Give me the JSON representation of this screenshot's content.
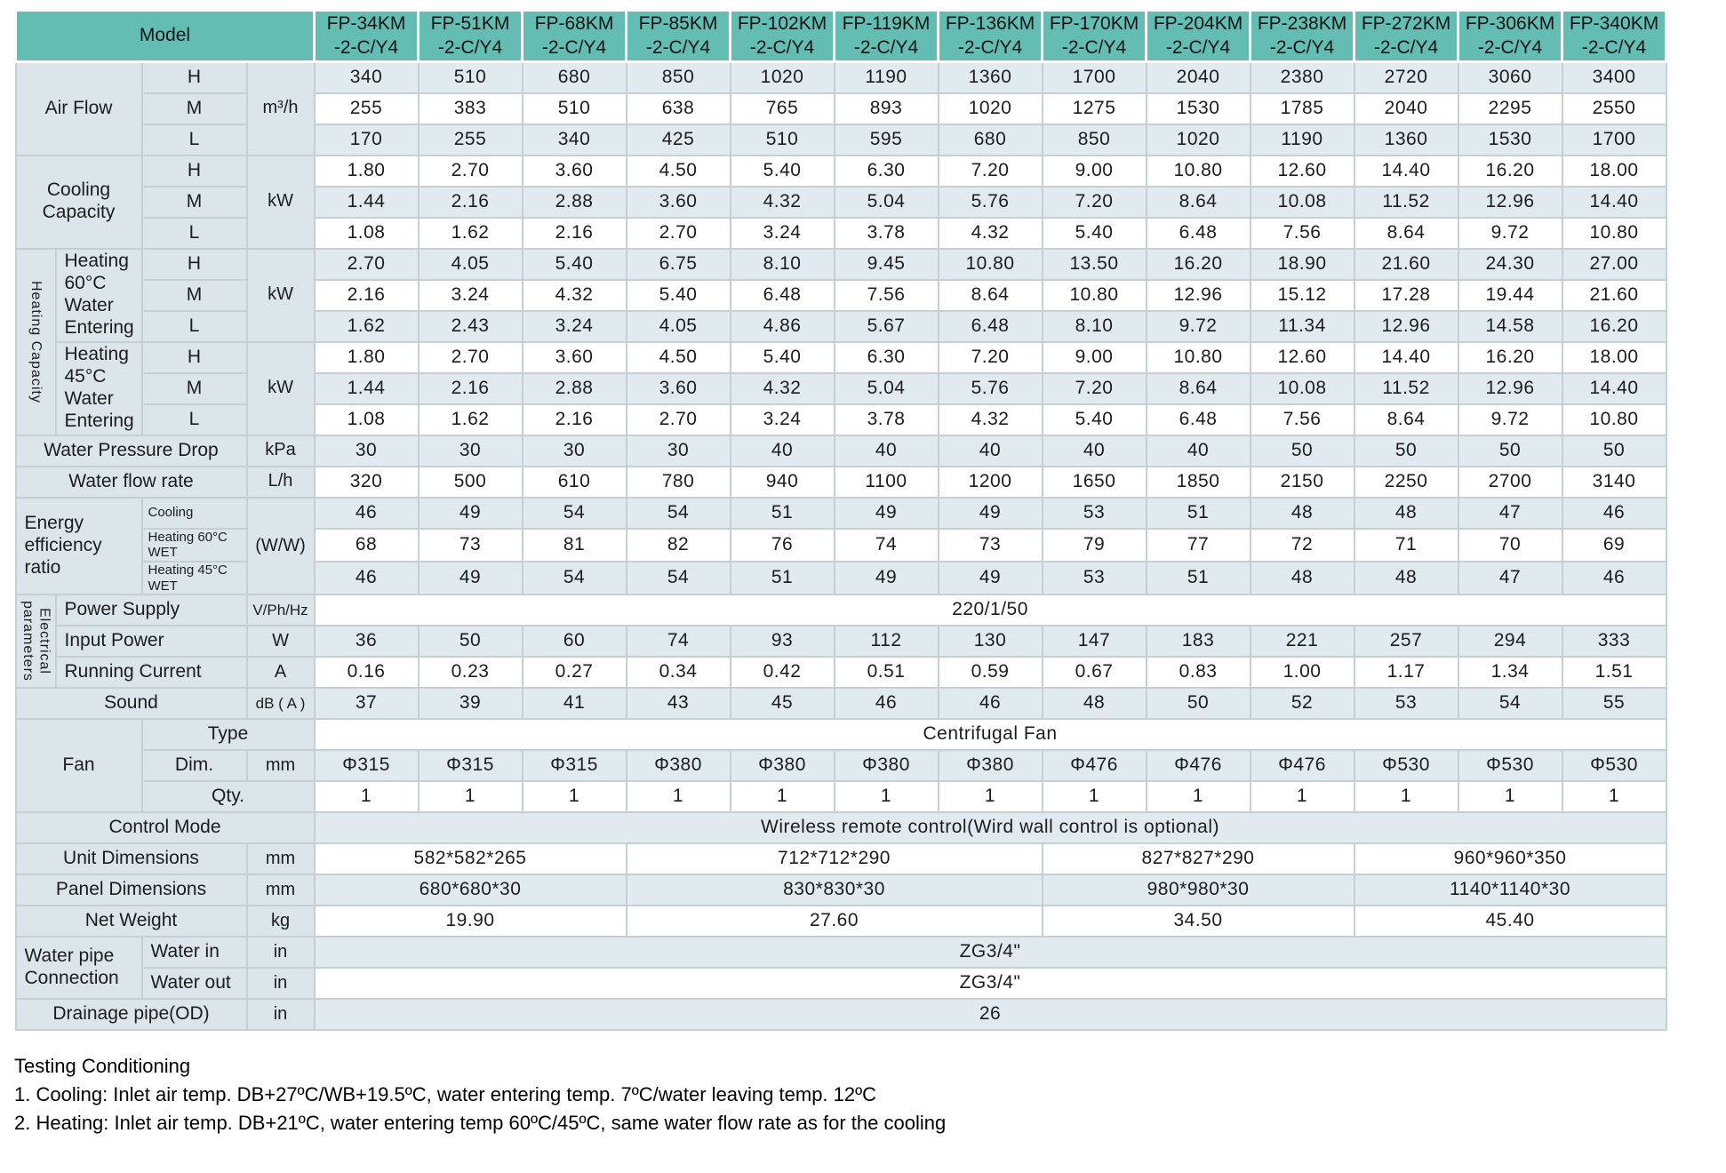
{
  "colors": {
    "header_teal": "#63bdb3",
    "label_bg": "#dbe5ea",
    "stripe_bg": "#e1eaef",
    "border": "#c6d0d4"
  },
  "table": {
    "model_header": "Model",
    "models": [
      "FP-34KM\n-2-C/Y4",
      "FP-51KM\n-2-C/Y4",
      "FP-68KM\n-2-C/Y4",
      "FP-85KM\n-2-C/Y4",
      "FP-102KM\n-2-C/Y4",
      "FP-119KM\n-2-C/Y4",
      "FP-136KM\n-2-C/Y4",
      "FP-170KM\n-2-C/Y4",
      "FP-204KM\n-2-C/Y4",
      "FP-238KM\n-2-C/Y4",
      "FP-272KM\n-2-C/Y4",
      "FP-306KM\n-2-C/Y4",
      "FP-340KM\n-2-C/Y4"
    ],
    "rows": [
      {
        "shade": "light",
        "cells": [
          {
            "t": "Air Flow",
            "cs": 2,
            "rs": 3,
            "c": "lbl",
            "n": "air-flow-label"
          },
          {
            "t": "H",
            "c": "spd",
            "n": "speed-high-label"
          },
          {
            "t": "m³/h",
            "rs": 3,
            "c": "unit",
            "n": "airflow-unit"
          }
        ],
        "values": [
          "340",
          "510",
          "680",
          "850",
          "1020",
          "1190",
          "1360",
          "1700",
          "2040",
          "2380",
          "2720",
          "3060",
          "3400"
        ]
      },
      {
        "shade": "white",
        "cells": [
          {
            "t": "M",
            "c": "spd",
            "n": "speed-mid-label"
          }
        ],
        "values": [
          "255",
          "383",
          "510",
          "638",
          "765",
          "893",
          "1020",
          "1275",
          "1530",
          "1785",
          "2040",
          "2295",
          "2550"
        ]
      },
      {
        "shade": "light",
        "cells": [
          {
            "t": "L",
            "c": "spd",
            "n": "speed-low-label"
          }
        ],
        "values": [
          "170",
          "255",
          "340",
          "425",
          "510",
          "595",
          "680",
          "850",
          "1020",
          "1190",
          "1360",
          "1530",
          "1700"
        ]
      },
      {
        "shade": "white",
        "cells": [
          {
            "t": "Cooling Capacity",
            "cs": 2,
            "rs": 3,
            "c": "lbl",
            "n": "cooling-capacity-label"
          },
          {
            "t": "H",
            "c": "spd",
            "n": "speed-high-label"
          },
          {
            "t": "kW",
            "rs": 3,
            "c": "unit",
            "n": "cooling-unit"
          }
        ],
        "values": [
          "1.80",
          "2.70",
          "3.60",
          "4.50",
          "5.40",
          "6.30",
          "7.20",
          "9.00",
          "10.80",
          "12.60",
          "14.40",
          "16.20",
          "18.00"
        ]
      },
      {
        "shade": "light",
        "cells": [
          {
            "t": "M",
            "c": "spd",
            "n": "speed-mid-label"
          }
        ],
        "values": [
          "1.44",
          "2.16",
          "2.88",
          "3.60",
          "4.32",
          "5.04",
          "5.76",
          "7.20",
          "8.64",
          "10.08",
          "11.52",
          "12.96",
          "14.40"
        ]
      },
      {
        "shade": "white",
        "cells": [
          {
            "t": "L",
            "c": "spd",
            "n": "speed-low-label"
          }
        ],
        "values": [
          "1.08",
          "1.62",
          "2.16",
          "2.70",
          "3.24",
          "3.78",
          "4.32",
          "5.40",
          "6.48",
          "7.56",
          "8.64",
          "9.72",
          "10.80"
        ]
      },
      {
        "shade": "light",
        "cells": [
          {
            "t": "Heating Capacity",
            "rs": 6,
            "c": "vert",
            "n": "heating-capacity-label"
          },
          {
            "t": "Heating\n60°C\nWater\nEntering",
            "rs": 3,
            "c": "lbl left",
            "n": "heating-60-label"
          },
          {
            "t": "H",
            "c": "spd",
            "n": "speed-high-label"
          },
          {
            "t": "kW",
            "rs": 3,
            "c": "unit",
            "n": "heating-60-unit"
          }
        ],
        "values": [
          "2.70",
          "4.05",
          "5.40",
          "6.75",
          "8.10",
          "9.45",
          "10.80",
          "13.50",
          "16.20",
          "18.90",
          "21.60",
          "24.30",
          "27.00"
        ]
      },
      {
        "shade": "white",
        "cells": [
          {
            "t": "M",
            "c": "spd",
            "n": "speed-mid-label"
          }
        ],
        "values": [
          "2.16",
          "3.24",
          "4.32",
          "5.40",
          "6.48",
          "7.56",
          "8.64",
          "10.80",
          "12.96",
          "15.12",
          "17.28",
          "19.44",
          "21.60"
        ]
      },
      {
        "shade": "light",
        "cells": [
          {
            "t": "L",
            "c": "spd",
            "n": "speed-low-label"
          }
        ],
        "values": [
          "1.62",
          "2.43",
          "3.24",
          "4.05",
          "4.86",
          "5.67",
          "6.48",
          "8.10",
          "9.72",
          "11.34",
          "12.96",
          "14.58",
          "16.20"
        ]
      },
      {
        "shade": "white",
        "cells": [
          {
            "t": "Heating\n45°C\nWater\nEntering",
            "rs": 3,
            "c": "lbl left",
            "n": "heating-45-label"
          },
          {
            "t": "H",
            "c": "spd",
            "n": "speed-high-label"
          },
          {
            "t": "kW",
            "rs": 3,
            "c": "unit",
            "n": "heating-45-unit"
          }
        ],
        "values": [
          "1.80",
          "2.70",
          "3.60",
          "4.50",
          "5.40",
          "6.30",
          "7.20",
          "9.00",
          "10.80",
          "12.60",
          "14.40",
          "16.20",
          "18.00"
        ]
      },
      {
        "shade": "light",
        "cells": [
          {
            "t": "M",
            "c": "spd",
            "n": "speed-mid-label"
          }
        ],
        "values": [
          "1.44",
          "2.16",
          "2.88",
          "3.60",
          "4.32",
          "5.04",
          "5.76",
          "7.20",
          "8.64",
          "10.08",
          "11.52",
          "12.96",
          "14.40"
        ]
      },
      {
        "shade": "white",
        "cells": [
          {
            "t": "L",
            "c": "spd",
            "n": "speed-low-label"
          }
        ],
        "values": [
          "1.08",
          "1.62",
          "2.16",
          "2.70",
          "3.24",
          "3.78",
          "4.32",
          "5.40",
          "6.48",
          "7.56",
          "8.64",
          "9.72",
          "10.80"
        ]
      },
      {
        "shade": "light",
        "cells": [
          {
            "t": "Water Pressure Drop",
            "cs": 3,
            "c": "lbl",
            "n": "water-pressure-drop-label"
          },
          {
            "t": "kPa",
            "c": "unit",
            "n": "pressure-unit"
          }
        ],
        "values": [
          "30",
          "30",
          "30",
          "30",
          "40",
          "40",
          "40",
          "40",
          "40",
          "50",
          "50",
          "50",
          "50"
        ]
      },
      {
        "shade": "white",
        "cells": [
          {
            "t": "Water flow rate",
            "cs": 3,
            "c": "lbl",
            "n": "water-flow-rate-label"
          },
          {
            "t": "L/h",
            "c": "unit",
            "n": "flow-unit"
          }
        ],
        "values": [
          "320",
          "500",
          "610",
          "780",
          "940",
          "1100",
          "1200",
          "1650",
          "1850",
          "2150",
          "2250",
          "2700",
          "3140"
        ]
      },
      {
        "shade": "light",
        "cells": [
          {
            "t": "Energy\nefficiency\nratio",
            "cs": 2,
            "rs": 3,
            "c": "lbl left",
            "n": "energy-efficiency-label"
          },
          {
            "t": "Cooling",
            "c": "sub",
            "n": "eer-cooling-label"
          },
          {
            "t": "(W/W)",
            "rs": 3,
            "c": "unit",
            "n": "eer-unit"
          }
        ],
        "values": [
          "46",
          "49",
          "54",
          "54",
          "51",
          "49",
          "49",
          "53",
          "51",
          "48",
          "48",
          "47",
          "46"
        ]
      },
      {
        "shade": "white",
        "cells": [
          {
            "t": "Heating 60°C WET",
            "c": "sub",
            "n": "eer-heating60-label"
          }
        ],
        "values": [
          "68",
          "73",
          "81",
          "82",
          "76",
          "74",
          "73",
          "79",
          "77",
          "72",
          "71",
          "70",
          "69"
        ]
      },
      {
        "shade": "light",
        "cells": [
          {
            "t": "Heating 45°C WET",
            "c": "sub",
            "n": "eer-heating45-label"
          }
        ],
        "values": [
          "46",
          "49",
          "54",
          "54",
          "51",
          "49",
          "49",
          "53",
          "51",
          "48",
          "48",
          "47",
          "46"
        ]
      },
      {
        "shade": "white",
        "cells": [
          {
            "t": "Electrical\nparameters",
            "rs": 3,
            "c": "vert",
            "n": "electrical-parameters-label"
          },
          {
            "t": "Power Supply",
            "cs": 2,
            "c": "lbl left",
            "n": "power-supply-label"
          },
          {
            "t": "V/Ph/Hz",
            "c": "unit sm",
            "n": "power-supply-unit"
          },
          {
            "t": "220/1/50",
            "cs": 13,
            "c": "val",
            "n": "power-supply-value"
          }
        ]
      },
      {
        "shade": "light",
        "cells": [
          {
            "t": "Input Power",
            "cs": 2,
            "c": "lbl left",
            "n": "input-power-label"
          },
          {
            "t": "W",
            "c": "unit",
            "n": "input-power-unit"
          }
        ],
        "values": [
          "36",
          "50",
          "60",
          "74",
          "93",
          "112",
          "130",
          "147",
          "183",
          "221",
          "257",
          "294",
          "333"
        ]
      },
      {
        "shade": "white",
        "cells": [
          {
            "t": "Running Current",
            "cs": 2,
            "c": "lbl left",
            "n": "running-current-label"
          },
          {
            "t": "A",
            "c": "unit",
            "n": "running-current-unit"
          }
        ],
        "values": [
          "0.16",
          "0.23",
          "0.27",
          "0.34",
          "0.42",
          "0.51",
          "0.59",
          "0.67",
          "0.83",
          "1.00",
          "1.17",
          "1.34",
          "1.51"
        ]
      },
      {
        "shade": "light",
        "cells": [
          {
            "t": "Sound",
            "cs": 3,
            "c": "lbl",
            "n": "sound-label"
          },
          {
            "t": "dB ( A )",
            "c": "unit sm",
            "n": "sound-unit"
          }
        ],
        "values": [
          "37",
          "39",
          "41",
          "43",
          "45",
          "46",
          "46",
          "48",
          "50",
          "52",
          "53",
          "54",
          "55"
        ]
      },
      {
        "shade": "white",
        "cells": [
          {
            "t": "Fan",
            "cs": 2,
            "rs": 3,
            "c": "lbl",
            "n": "fan-label"
          },
          {
            "t": "Type",
            "cs": 2,
            "c": "lbl",
            "n": "fan-type-label"
          },
          {
            "t": "Centrifugal Fan",
            "cs": 13,
            "c": "val",
            "n": "fan-type-value"
          }
        ]
      },
      {
        "shade": "light",
        "cells": [
          {
            "t": "Dim.",
            "c": "lbl",
            "n": "fan-dim-label"
          },
          {
            "t": "mm",
            "c": "unit",
            "n": "fan-dim-unit"
          }
        ],
        "values": [
          "Φ315",
          "Φ315",
          "Φ315",
          "Φ380",
          "Φ380",
          "Φ380",
          "Φ380",
          "Φ476",
          "Φ476",
          "Φ476",
          "Φ530",
          "Φ530",
          "Φ530"
        ]
      },
      {
        "shade": "white",
        "cells": [
          {
            "t": "Qty.",
            "cs": 2,
            "c": "lbl",
            "n": "fan-qty-label"
          }
        ],
        "values": [
          "1",
          "1",
          "1",
          "1",
          "1",
          "1",
          "1",
          "1",
          "1",
          "1",
          "1",
          "1",
          "1"
        ]
      },
      {
        "shade": "light",
        "cells": [
          {
            "t": "Control Mode",
            "cs": 4,
            "c": "lbl",
            "n": "control-mode-label"
          },
          {
            "t": "Wireless remote control(Wird wall control is optional)",
            "cs": 13,
            "c": "val",
            "n": "control-mode-value"
          }
        ]
      },
      {
        "shade": "white",
        "cells": [
          {
            "t": "Unit Dimensions",
            "cs": 3,
            "c": "lbl",
            "n": "unit-dimensions-label"
          },
          {
            "t": "mm",
            "c": "unit",
            "n": "unit-dimensions-unit"
          },
          {
            "t": "582*582*265",
            "cs": 3,
            "c": "val",
            "n": "unit-dimensions-value"
          },
          {
            "t": "712*712*290",
            "cs": 4,
            "c": "val",
            "n": "unit-dimensions-value"
          },
          {
            "t": "827*827*290",
            "cs": 3,
            "c": "val",
            "n": "unit-dimensions-value"
          },
          {
            "t": "960*960*350",
            "cs": 3,
            "c": "val",
            "n": "unit-dimensions-value"
          }
        ]
      },
      {
        "shade": "light",
        "cells": [
          {
            "t": "Panel Dimensions",
            "cs": 3,
            "c": "lbl",
            "n": "panel-dimensions-label"
          },
          {
            "t": "mm",
            "c": "unit",
            "n": "panel-dimensions-unit"
          },
          {
            "t": "680*680*30",
            "cs": 3,
            "c": "val",
            "n": "panel-dimensions-value"
          },
          {
            "t": "830*830*30",
            "cs": 4,
            "c": "val",
            "n": "panel-dimensions-value"
          },
          {
            "t": "980*980*30",
            "cs": 3,
            "c": "val",
            "n": "panel-dimensions-value"
          },
          {
            "t": "1140*1140*30",
            "cs": 3,
            "c": "val",
            "n": "panel-dimensions-value"
          }
        ]
      },
      {
        "shade": "white",
        "cells": [
          {
            "t": "Net Weight",
            "cs": 3,
            "c": "lbl",
            "n": "net-weight-label"
          },
          {
            "t": "kg",
            "c": "unit",
            "n": "net-weight-unit"
          },
          {
            "t": "19.90",
            "cs": 3,
            "c": "val",
            "n": "net-weight-value"
          },
          {
            "t": "27.60",
            "cs": 4,
            "c": "val",
            "n": "net-weight-value"
          },
          {
            "t": "34.50",
            "cs": 3,
            "c": "val",
            "n": "net-weight-value"
          },
          {
            "t": "45.40",
            "cs": 3,
            "c": "val",
            "n": "net-weight-value"
          }
        ]
      },
      {
        "shade": "light",
        "cells": [
          {
            "t": "Water pipe\nConnection",
            "cs": 2,
            "rs": 2,
            "c": "lbl left",
            "n": "water-pipe-connection-label"
          },
          {
            "t": "Water in",
            "c": "lbl left",
            "n": "water-in-label"
          },
          {
            "t": "in",
            "c": "unit",
            "n": "water-in-unit"
          },
          {
            "t": "ZG3/4\"",
            "cs": 13,
            "c": "val",
            "n": "water-in-value"
          }
        ]
      },
      {
        "shade": "white",
        "cells": [
          {
            "t": "Water out",
            "c": "lbl left",
            "n": "water-out-label"
          },
          {
            "t": "in",
            "c": "unit",
            "n": "water-out-unit"
          },
          {
            "t": "ZG3/4\"",
            "cs": 13,
            "c": "val",
            "n": "water-out-value"
          }
        ]
      },
      {
        "shade": "light",
        "cells": [
          {
            "t": "Drainage pipe(OD)",
            "cs": 3,
            "c": "lbl",
            "n": "drainage-pipe-label"
          },
          {
            "t": "in",
            "c": "unit",
            "n": "drainage-pipe-unit"
          },
          {
            "t": "26",
            "cs": 13,
            "c": "val",
            "n": "drainage-pipe-value"
          }
        ]
      }
    ]
  },
  "notes": {
    "title": "Testing Conditioning",
    "items": [
      "1. Cooling: Inlet air temp. DB+27ºC/WB+19.5ºC, water entering temp. 7ºC/water leaving temp. 12ºC",
      "2. Heating: Inlet air temp. DB+21ºC, water entering temp 60ºC/45ºC, same water flow rate as for the cooling"
    ]
  }
}
